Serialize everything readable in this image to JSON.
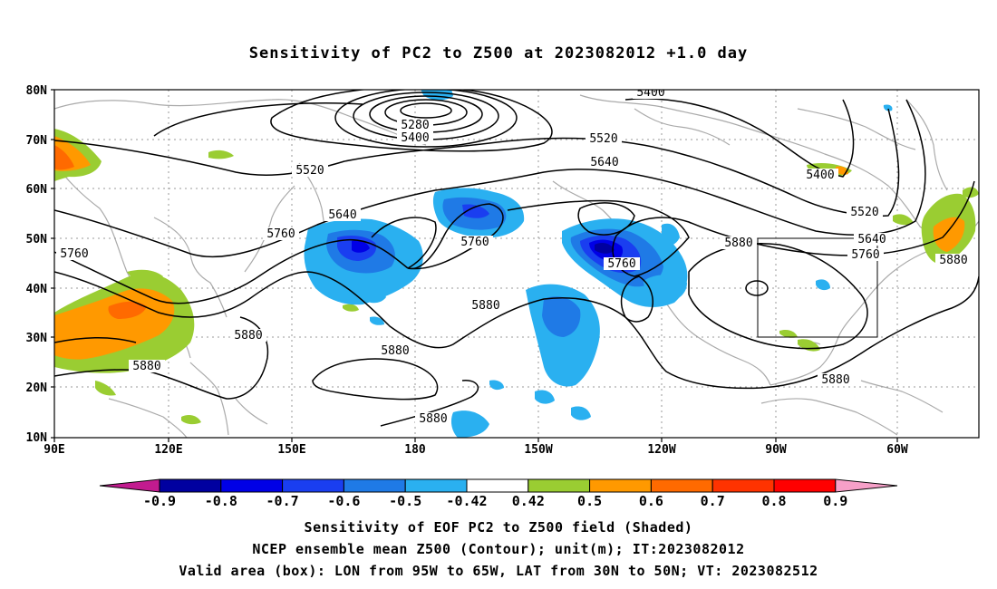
{
  "title": "Sensitivity of PC2 to Z500 at 2023082012 +1.0 day",
  "map": {
    "lat_labels": [
      "80N",
      "70N",
      "60N",
      "50N",
      "40N",
      "30N",
      "20N",
      "10N"
    ],
    "lon_labels": [
      "90E",
      "120E",
      "150E",
      "180",
      "150W",
      "120W",
      "90W",
      "60W"
    ],
    "contour_labels": [
      "5280",
      "5400",
      "5400",
      "5400",
      "5520",
      "5520",
      "5520",
      "5640",
      "5640",
      "5640",
      "5760",
      "5760",
      "5760",
      "5760",
      "5760",
      "5880",
      "5880",
      "5880",
      "5880",
      "5880",
      "5880",
      "5880",
      "5880"
    ],
    "valid_box": {
      "lon_range": [
        "95W",
        "65W"
      ],
      "lat_range": [
        "30N",
        "50N"
      ]
    }
  },
  "colorbar": {
    "labels": [
      "-0.9",
      "-0.8",
      "-0.7",
      "-0.6",
      "-0.5",
      "-0.42",
      "0.42",
      "0.5",
      "0.6",
      "0.7",
      "0.8",
      "0.9"
    ],
    "colors": [
      "#0000a0",
      "#0000e6",
      "#1a3ef0",
      "#1f7ae6",
      "#2ab0f0",
      "#ffffff",
      "#9acd32",
      "#ff9900",
      "#ff6a00",
      "#ff3300",
      "#ff0000"
    ],
    "low_arrow_color": "#c21b8f",
    "high_arrow_color": "#f6a0c8"
  },
  "captions": [
    "Sensitivity of EOF PC2 to Z500 field (Shaded)",
    "NCEP ensemble mean Z500 (Contour); unit(m); IT:2023082012",
    "Valid area (box): LON from 95W to 65W, LAT from 30N to 50N; VT: 2023082512"
  ]
}
